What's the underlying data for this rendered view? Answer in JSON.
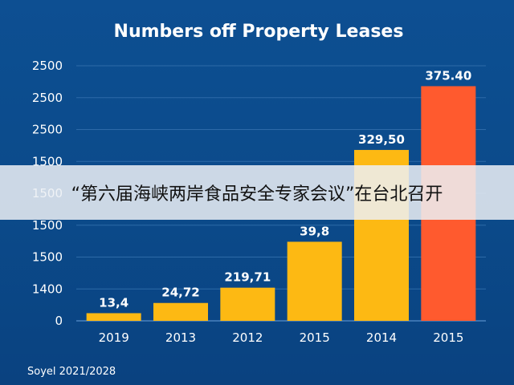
{
  "chart_data": {
    "type": "bar",
    "title": "Numbers off Property Leases",
    "categories": [
      "2019",
      "2013",
      "2012",
      "2015",
      "2014",
      "2015"
    ],
    "values": [
      13.4,
      24.72,
      219.71,
      39.8,
      329.5,
      375.4
    ],
    "data_labels": [
      "13,4",
      "24,72",
      "219,71",
      "39,8",
      "329,50",
      "375.40"
    ],
    "y_tick_labels": [
      "2500",
      "2500",
      "2500",
      "1500",
      "1500",
      "1500",
      "1500",
      "1400",
      "0"
    ],
    "bar_fill_levels": [
      0.03,
      0.07,
      0.13,
      0.31,
      0.67,
      0.92
    ],
    "colors": [
      "#fdb913",
      "#fdb913",
      "#fdb913",
      "#fdb913",
      "#fdb913",
      "#ff5a2e"
    ],
    "grid": true,
    "legend": "none"
  },
  "source": "Soyel 2021/2028",
  "banner_text": "“第六届海峡两岸食品安全专家会议”在台北召开"
}
